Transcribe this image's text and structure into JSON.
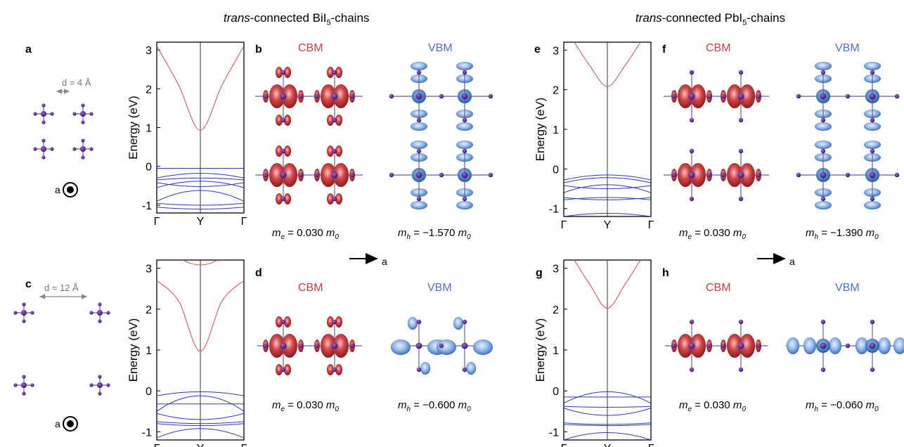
{
  "headers": {
    "left": {
      "prefix": "trans",
      "mid": "-connected BiI",
      "sub": "5",
      "suffix": "-chains"
    },
    "right": {
      "prefix": "trans",
      "mid": "-connected PbI",
      "sub": "5",
      "suffix": "-chains"
    }
  },
  "panel_labels": {
    "a": "a",
    "b": "b",
    "c": "c",
    "d": "d",
    "e": "e",
    "f": "f",
    "g": "g",
    "h": "h"
  },
  "structures": {
    "a": {
      "distance": "d = 4 Å",
      "axis": "a"
    },
    "c": {
      "distance": "d = 12 Å",
      "axis": "a"
    }
  },
  "orbital_labels": {
    "cbm": "CBM",
    "vbm": "VBM"
  },
  "direction_arrows": {
    "label": "a"
  },
  "masses": {
    "b": {
      "e": {
        "sym": "m",
        "sub": "e",
        "val": " = 0.030 ",
        "unit": "m",
        "usub": "0"
      },
      "h": {
        "sym": "m",
        "sub": "h",
        "val": " = −1.570 ",
        "unit": "m",
        "usub": "0"
      }
    },
    "d": {
      "e": {
        "sym": "m",
        "sub": "e",
        "val": " = 0.030 ",
        "unit": "m",
        "usub": "0"
      },
      "h": {
        "sym": "m",
        "sub": "h",
        "val": " = −0.600 ",
        "unit": "m",
        "usub": "0"
      }
    },
    "f": {
      "e": {
        "sym": "m",
        "sub": "e",
        "val": " = 0.030 ",
        "unit": "m",
        "usub": "0"
      },
      "h": {
        "sym": "m",
        "sub": "h",
        "val": " = −1.390 ",
        "unit": "m",
        "usub": "0"
      }
    },
    "h": {
      "e": {
        "sym": "m",
        "sub": "e",
        "val": " = 0.030 ",
        "unit": "m",
        "usub": "0"
      },
      "h": {
        "sym": "m",
        "sub": "h",
        "val": " = −0.060 ",
        "unit": "m",
        "usub": "0"
      }
    }
  },
  "colors": {
    "conduction": "#d05050",
    "valence": "#2a3ab8",
    "atom": "#4b1a8a",
    "cbm_lobe": "#c0262b",
    "vbm_lobe": "#5b8fd6"
  },
  "chart_data": [
    {
      "type": "line",
      "panel": "a-band",
      "ylabel": "Energy (eV)",
      "ylim": [
        -1.2,
        3.2
      ],
      "yticks": [
        "-1",
        "0",
        "1",
        "2",
        "3"
      ],
      "xticks": [
        "Γ",
        "Y",
        "Γ"
      ],
      "series": [
        {
          "band": "conduction",
          "points": [
            [
              0,
              3.1
            ],
            [
              0.25,
              2.1
            ],
            [
              0.5,
              0.93
            ],
            [
              0.75,
              2.1
            ],
            [
              1,
              3.1
            ]
          ]
        },
        {
          "band": "valence",
          "points": [
            [
              0,
              -0.05
            ],
            [
              0.5,
              -0.05
            ],
            [
              1,
              -0.05
            ]
          ]
        },
        {
          "band": "valence",
          "points": [
            [
              0,
              -0.3
            ],
            [
              0.5,
              -0.18
            ],
            [
              1,
              -0.3
            ]
          ]
        },
        {
          "band": "valence",
          "points": [
            [
              0,
              -0.35
            ],
            [
              0.5,
              -0.3
            ],
            [
              1,
              -0.35
            ]
          ]
        },
        {
          "band": "valence",
          "points": [
            [
              0,
              -0.42
            ],
            [
              0.5,
              -0.52
            ],
            [
              1,
              -0.42
            ]
          ]
        },
        {
          "band": "valence",
          "points": [
            [
              0,
              -0.55
            ],
            [
              0.5,
              -0.38
            ],
            [
              1,
              -0.55
            ]
          ]
        },
        {
          "band": "valence",
          "points": [
            [
              0,
              -0.9
            ],
            [
              0.5,
              -0.62
            ],
            [
              1,
              -0.9
            ]
          ]
        },
        {
          "band": "valence",
          "points": [
            [
              0,
              -0.95
            ],
            [
              0.5,
              -1.0
            ],
            [
              1,
              -0.95
            ]
          ]
        },
        {
          "band": "valence",
          "points": [
            [
              0,
              -1.05
            ],
            [
              0.5,
              -1.1
            ],
            [
              1,
              -1.05
            ]
          ]
        }
      ]
    },
    {
      "type": "line",
      "panel": "c-band",
      "ylabel": "Energy (eV)",
      "ylim": [
        -1.2,
        3.2
      ],
      "yticks": [
        "-1",
        "0",
        "1",
        "2",
        "3"
      ],
      "xticks": [
        "Γ",
        "Y",
        "Γ"
      ],
      "series": [
        {
          "band": "conduction",
          "points": [
            [
              0,
              2.7
            ],
            [
              0.25,
              2.2
            ],
            [
              0.5,
              0.97
            ],
            [
              0.75,
              2.2
            ],
            [
              1,
              2.7
            ]
          ]
        },
        {
          "band": "conduction",
          "points": [
            [
              0.3,
              3.2
            ],
            [
              0.5,
              3.08
            ],
            [
              0.7,
              3.2
            ]
          ]
        },
        {
          "band": "valence",
          "points": [
            [
              0,
              -0.12
            ],
            [
              0.5,
              -0.02
            ],
            [
              1,
              -0.12
            ]
          ]
        },
        {
          "band": "valence",
          "points": [
            [
              0,
              -0.32
            ],
            [
              0.5,
              -0.32
            ],
            [
              1,
              -0.32
            ]
          ]
        },
        {
          "band": "valence",
          "points": [
            [
              0,
              -0.5
            ],
            [
              0.5,
              -0.12
            ],
            [
              1,
              -0.5
            ]
          ]
        },
        {
          "band": "valence",
          "points": [
            [
              0,
              -0.55
            ],
            [
              0.5,
              -0.7
            ],
            [
              1,
              -0.55
            ]
          ]
        },
        {
          "band": "valence",
          "points": [
            [
              0,
              -0.75
            ],
            [
              0.5,
              -0.8
            ],
            [
              1,
              -0.75
            ]
          ]
        },
        {
          "band": "valence",
          "points": [
            [
              0,
              -0.8
            ],
            [
              0.5,
              -0.85
            ],
            [
              1,
              -0.8
            ]
          ]
        },
        {
          "band": "valence",
          "points": [
            [
              0,
              -1.15
            ],
            [
              0.5,
              -0.92
            ],
            [
              1,
              -1.15
            ]
          ]
        }
      ]
    },
    {
      "type": "line",
      "panel": "e-band",
      "ylabel": "Energy (eV)",
      "ylim": [
        -1.2,
        3.2
      ],
      "yticks": [
        "-1",
        "0",
        "1",
        "2",
        "3"
      ],
      "xticks": [
        "Γ",
        "Y",
        "Γ"
      ],
      "series": [
        {
          "band": "conduction",
          "points": [
            [
              0.12,
              3.2
            ],
            [
              0.3,
              2.6
            ],
            [
              0.5,
              2.08
            ],
            [
              0.7,
              2.6
            ],
            [
              0.88,
              3.2
            ]
          ]
        },
        {
          "band": "valence",
          "points": [
            [
              0,
              -0.28
            ],
            [
              0.5,
              -0.15
            ],
            [
              1,
              -0.28
            ]
          ]
        },
        {
          "band": "valence",
          "points": [
            [
              0,
              -0.35
            ],
            [
              0.5,
              -0.22
            ],
            [
              1,
              -0.35
            ]
          ]
        },
        {
          "band": "valence",
          "points": [
            [
              0,
              -0.42
            ],
            [
              0.5,
              -0.5
            ],
            [
              1,
              -0.42
            ]
          ]
        },
        {
          "band": "valence",
          "points": [
            [
              0,
              -0.6
            ],
            [
              0.5,
              -0.4
            ],
            [
              1,
              -0.6
            ]
          ]
        },
        {
          "band": "valence",
          "points": [
            [
              0,
              -0.72
            ],
            [
              0.5,
              -0.78
            ],
            [
              1,
              -0.72
            ]
          ]
        },
        {
          "band": "valence",
          "points": [
            [
              0,
              -0.78
            ],
            [
              0.5,
              -0.72
            ],
            [
              1,
              -0.78
            ]
          ]
        },
        {
          "band": "valence",
          "points": [
            [
              0,
              -1.2
            ],
            [
              0.5,
              -1.12
            ],
            [
              1,
              -1.2
            ]
          ]
        }
      ]
    },
    {
      "type": "line",
      "panel": "g-band",
      "ylabel": "Energy (eV)",
      "ylim": [
        -1.2,
        3.2
      ],
      "yticks": [
        "-1",
        "0",
        "1",
        "2",
        "3"
      ],
      "xticks": [
        "Γ",
        "Y",
        "Γ"
      ],
      "series": [
        {
          "band": "conduction",
          "points": [
            [
              0.12,
              3.2
            ],
            [
              0.3,
              2.6
            ],
            [
              0.5,
              2.02
            ],
            [
              0.7,
              2.6
            ],
            [
              0.88,
              3.2
            ]
          ]
        },
        {
          "band": "valence",
          "points": [
            [
              0,
              -0.15
            ],
            [
              0.5,
              -0.15
            ],
            [
              1,
              -0.15
            ]
          ]
        },
        {
          "band": "valence",
          "points": [
            [
              0,
              -0.3
            ],
            [
              0.5,
              -0.02
            ],
            [
              1,
              -0.3
            ]
          ]
        },
        {
          "band": "valence",
          "points": [
            [
              0,
              -0.38
            ],
            [
              0.5,
              -0.4
            ],
            [
              1,
              -0.38
            ]
          ]
        },
        {
          "band": "valence",
          "points": [
            [
              0,
              -0.42
            ],
            [
              0.5,
              -0.6
            ],
            [
              1,
              -0.42
            ]
          ]
        },
        {
          "band": "valence",
          "points": [
            [
              0,
              -0.78
            ],
            [
              0.5,
              -0.82
            ],
            [
              1,
              -0.78
            ]
          ]
        },
        {
          "band": "valence",
          "points": [
            [
              0,
              -0.82
            ],
            [
              0.5,
              -0.85
            ],
            [
              1,
              -0.82
            ]
          ]
        },
        {
          "band": "valence",
          "points": [
            [
              0,
              -1.2
            ],
            [
              0.5,
              -1.02
            ],
            [
              1,
              -1.2
            ]
          ]
        }
      ]
    }
  ]
}
